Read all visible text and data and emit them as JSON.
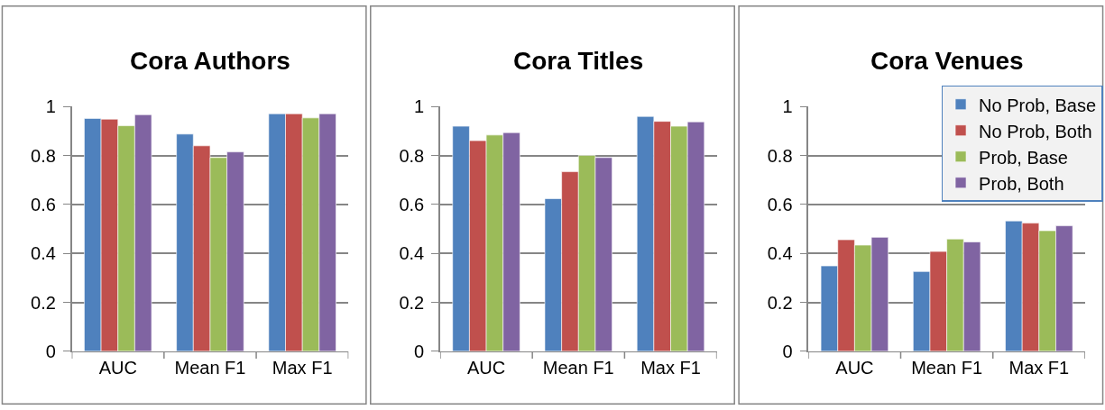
{
  "chart_data": [
    {
      "type": "bar",
      "title": "Cora Authors",
      "categories": [
        "AUC",
        "Mean F1",
        "Max F1"
      ],
      "ylim": [
        0,
        1
      ],
      "yticks": [
        0,
        0.2,
        0.4,
        0.6,
        0.8,
        1
      ],
      "grid": "y",
      "legend": false,
      "series": [
        {
          "color": "#4f81bd",
          "values": [
            0.952,
            0.888,
            0.971
          ]
        },
        {
          "color": "#c0504d",
          "values": [
            0.949,
            0.84,
            0.971
          ]
        },
        {
          "color": "#9bbb59",
          "values": [
            0.922,
            0.792,
            0.954
          ]
        },
        {
          "color": "#8064a2",
          "values": [
            0.967,
            0.815,
            0.971
          ]
        }
      ]
    },
    {
      "type": "bar",
      "title": "Cora Titles",
      "categories": [
        "AUC",
        "Mean F1",
        "Max F1"
      ],
      "ylim": [
        0,
        1
      ],
      "yticks": [
        0,
        0.2,
        0.4,
        0.6,
        0.8,
        1
      ],
      "grid": "y",
      "legend": false,
      "series": [
        {
          "color": "#4f81bd",
          "values": [
            0.92,
            0.624,
            0.96
          ]
        },
        {
          "color": "#c0504d",
          "values": [
            0.861,
            0.734,
            0.94
          ]
        },
        {
          "color": "#9bbb59",
          "values": [
            0.884,
            0.801,
            0.92
          ]
        },
        {
          "color": "#8064a2",
          "values": [
            0.894,
            0.792,
            0.938
          ]
        }
      ]
    },
    {
      "type": "bar",
      "title": "Cora Venues",
      "categories": [
        "AUC",
        "Mean F1",
        "Max F1"
      ],
      "ylim": [
        0,
        1
      ],
      "yticks": [
        0,
        0.2,
        0.4,
        0.6,
        0.8,
        1
      ],
      "grid": "y",
      "legend": "top right",
      "series": [
        {
          "name": "No Prob, Base",
          "color": "#4f81bd",
          "values": [
            0.349,
            0.326,
            0.533
          ]
        },
        {
          "name": "No Prob, Both",
          "color": "#c0504d",
          "values": [
            0.456,
            0.408,
            0.524
          ]
        },
        {
          "name": "Prob, Base",
          "color": "#9bbb59",
          "values": [
            0.434,
            0.459,
            0.493
          ]
        },
        {
          "name": "Prob, Both",
          "color": "#8064a2",
          "values": [
            0.466,
            0.447,
            0.513
          ]
        }
      ]
    }
  ]
}
